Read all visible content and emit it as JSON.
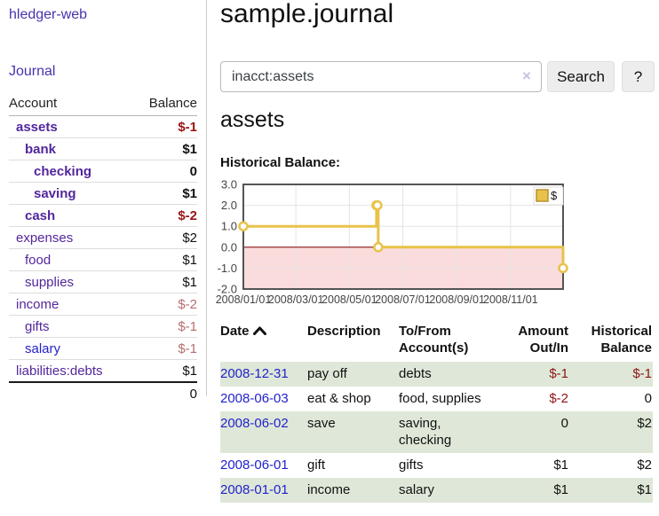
{
  "colors": {
    "link_purple": "#53269c",
    "link_blue": "#2222cc",
    "negative_strong": "#991414",
    "negative_light": "#b76e6e",
    "row_stripe_green": "#dfe8d8",
    "chart_line_yellow": "#e8c24a",
    "chart_negative_pink": "#fbdcdc",
    "chart_zero_line_red": "#8e1414"
  },
  "sidebar": {
    "brand": "hledger-web",
    "nav": [
      {
        "label": "Journal"
      }
    ],
    "accounts_table": {
      "headers": [
        "Account",
        "Balance"
      ],
      "rows": [
        {
          "name": "assets",
          "depth": 1,
          "bold": true,
          "balance": "$-1",
          "balance_style": "neg-strong",
          "link_style": "purple"
        },
        {
          "name": "bank",
          "depth": 2,
          "bold": true,
          "balance": "$1",
          "balance_style": "",
          "link_style": "purple"
        },
        {
          "name": "checking",
          "depth": 3,
          "bold": true,
          "balance": "0",
          "balance_style": "",
          "link_style": "purple"
        },
        {
          "name": "saving",
          "depth": 3,
          "bold": true,
          "balance": "$1",
          "balance_style": "",
          "link_style": "purple"
        },
        {
          "name": "cash",
          "depth": 2,
          "bold": true,
          "balance": "$-2",
          "balance_style": "neg-strong",
          "link_style": "purple"
        },
        {
          "name": "expenses",
          "depth": 1,
          "bold": false,
          "balance": "$2",
          "balance_style": "",
          "link_style": "purple"
        },
        {
          "name": "food",
          "depth": 2,
          "bold": false,
          "balance": "$1",
          "balance_style": "",
          "link_style": "purple"
        },
        {
          "name": "supplies",
          "depth": 2,
          "bold": false,
          "balance": "$1",
          "balance_style": "",
          "link_style": "purple"
        },
        {
          "name": "income",
          "depth": 1,
          "bold": false,
          "balance": "$-2",
          "balance_style": "neg-light",
          "link_style": "purple"
        },
        {
          "name": "gifts",
          "depth": 2,
          "bold": false,
          "balance": "$-1",
          "balance_style": "neg-light",
          "link_style": "purple"
        },
        {
          "name": "salary",
          "depth": 2,
          "bold": false,
          "balance": "$-1",
          "balance_style": "neg-light",
          "link_style": "blue"
        },
        {
          "name": "liabilities:debts",
          "depth": 1,
          "bold": false,
          "balance": "$1",
          "balance_style": "",
          "link_style": "purple"
        }
      ],
      "total": "0"
    }
  },
  "main": {
    "title": "sample.journal",
    "search": {
      "value": "inacct:assets",
      "clear_icon": "×",
      "button": "Search",
      "help_button": "?"
    },
    "account_heading": "assets",
    "register_table": {
      "headers": [
        {
          "label": "Date",
          "align": "left",
          "sorted": true
        },
        {
          "label": "Description",
          "align": "left",
          "sorted": false
        },
        {
          "label": "To/From Account(s)",
          "align": "left",
          "sorted": false
        },
        {
          "label": "Amount Out/In",
          "align": "right",
          "sorted": false
        },
        {
          "label": "Historical Balance",
          "align": "right",
          "sorted": false
        }
      ],
      "sort_column": "Date",
      "sort_direction": "ascending",
      "rows": [
        {
          "date": "2008-12-31",
          "description": "pay off",
          "accounts": "debts",
          "amount": "$-1",
          "amount_negative": true,
          "balance": "$-1",
          "balance_negative": true,
          "shaded": true
        },
        {
          "date": "2008-06-03",
          "description": "eat & shop",
          "accounts": "food, supplies",
          "amount": "$-2",
          "amount_negative": true,
          "balance": "0",
          "balance_negative": false,
          "shaded": false
        },
        {
          "date": "2008-06-02",
          "description": "save",
          "accounts": "saving, checking",
          "amount": "0",
          "amount_negative": false,
          "balance": "$2",
          "balance_negative": false,
          "shaded": true
        },
        {
          "date": "2008-06-01",
          "description": "gift",
          "accounts": "gifts",
          "amount": "$1",
          "amount_negative": false,
          "balance": "$2",
          "balance_negative": false,
          "shaded": false
        },
        {
          "date": "2008-01-01",
          "description": "income",
          "accounts": "salary",
          "amount": "$1",
          "amount_negative": false,
          "balance": "$1",
          "balance_negative": false,
          "shaded": true
        }
      ]
    }
  },
  "chart_data": {
    "type": "line",
    "title": "Historical Balance:",
    "legend": [
      {
        "label": "$",
        "color": "#e8c24a"
      }
    ],
    "legend_position": "top-right",
    "grid": true,
    "step": true,
    "x_tick_labels": [
      "2008/01/01",
      "2008/03/01",
      "2008/05/01",
      "2008/07/01",
      "2008/09/01",
      "2008/11/01"
    ],
    "x_tick_days": [
      0,
      60,
      121,
      182,
      244,
      305
    ],
    "x_range_days": [
      0,
      365
    ],
    "y_ticks": [
      3.0,
      2.0,
      1.0,
      0.0,
      -1.0,
      -2.0
    ],
    "ylim": [
      -2,
      3
    ],
    "series": [
      {
        "name": "$",
        "points": [
          {
            "date": "2008-01-01",
            "day": 0,
            "value": 1
          },
          {
            "date": "2008-06-01",
            "day": 152,
            "value": 2
          },
          {
            "date": "2008-06-02",
            "day": 153,
            "value": 2
          },
          {
            "date": "2008-06-03",
            "day": 154,
            "value": 0
          },
          {
            "date": "2008-12-31",
            "day": 365,
            "value": -1
          }
        ]
      }
    ],
    "negative_region_fill": "#fbdcdc",
    "zero_line_color": "#8e1414",
    "line_color": "#e8c24a",
    "marker": "open-circle"
  }
}
